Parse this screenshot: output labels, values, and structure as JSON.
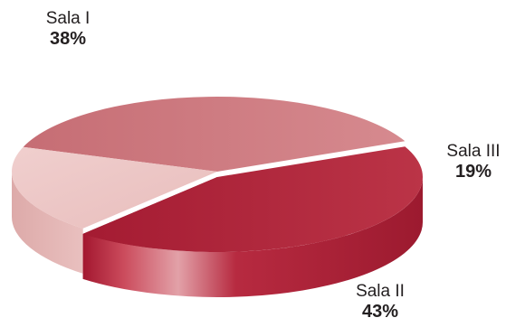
{
  "chart_data": {
    "type": "pie",
    "categories": [
      "Sala I",
      "Sala III",
      "Sala II"
    ],
    "values": [
      38,
      19,
      43
    ],
    "value_labels": [
      "38%",
      "19%",
      "43%"
    ],
    "colors": [
      "#cc7c80",
      "#ecc6c5",
      "#b5283e"
    ],
    "side_colors": [
      "#b04552",
      "#ddaaa9",
      "#9e1b30"
    ],
    "legend": "none"
  }
}
